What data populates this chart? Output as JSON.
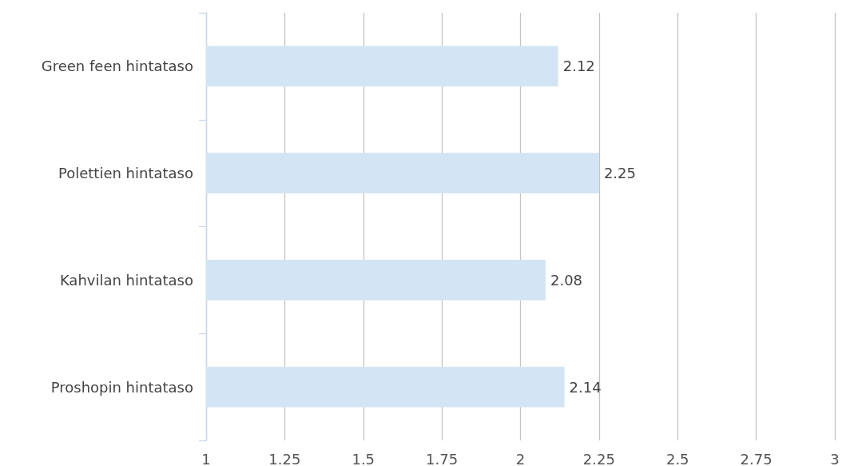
{
  "chart_data": {
    "type": "bar",
    "orientation": "horizontal",
    "categories": [
      "Green feen hintataso",
      "Polettien hintataso",
      "Kahvilan hintataso",
      "Proshopin hintataso"
    ],
    "values": [
      2.12,
      2.25,
      2.08,
      2.14
    ],
    "color": "#d3e5f4",
    "xlim": [
      1,
      3
    ],
    "xticks": [
      1,
      1.25,
      1.5,
      1.75,
      2,
      2.25,
      2.5,
      2.75,
      3
    ],
    "grid": "x",
    "data_labels": true
  }
}
